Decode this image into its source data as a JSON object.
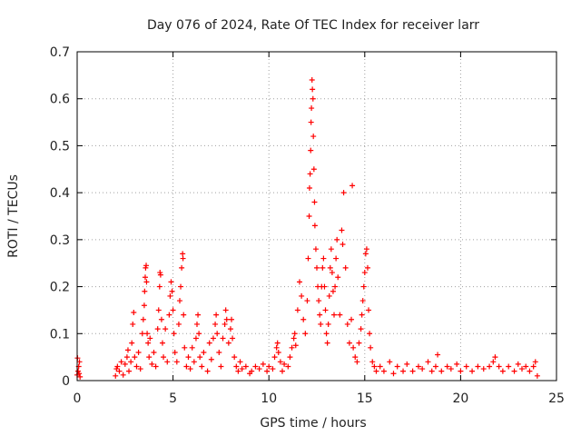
{
  "chart_data": {
    "type": "scatter",
    "title": "Day 076 of 2024, Rate Of TEC Index for receiver larr",
    "xlabel": "GPS time / hours",
    "ylabel": "ROTI / TECUs",
    "xlim": [
      0,
      25
    ],
    "ylim": [
      0,
      0.7
    ],
    "xticks": [
      0,
      5,
      10,
      15,
      20,
      25
    ],
    "yticks": [
      0,
      0.1,
      0.2,
      0.3,
      0.4,
      0.5,
      0.6,
      0.7
    ],
    "xtick_labels": [
      "0",
      "5",
      "10",
      "15",
      "20",
      "25"
    ],
    "ytick_labels": [
      "0",
      "0.1",
      "0.2",
      "0.3",
      "0.4",
      "0.5",
      "0.6",
      "0.7"
    ],
    "grid": true,
    "marker": "+",
    "color": "#ff0000",
    "series": [
      {
        "name": "ROTI",
        "points": [
          [
            0.0,
            0.012
          ],
          [
            0.02,
            0.048
          ],
          [
            0.05,
            0.02
          ],
          [
            0.08,
            0.03
          ],
          [
            0.1,
            0.015
          ],
          [
            0.12,
            0.04
          ],
          [
            0.15,
            0.008
          ],
          [
            2.0,
            0.01
          ],
          [
            2.05,
            0.025
          ],
          [
            2.1,
            0.03
          ],
          [
            2.2,
            0.02
          ],
          [
            2.3,
            0.04
          ],
          [
            2.4,
            0.012
          ],
          [
            2.5,
            0.035
          ],
          [
            2.6,
            0.05
          ],
          [
            2.65,
            0.065
          ],
          [
            2.7,
            0.02
          ],
          [
            2.8,
            0.04
          ],
          [
            2.85,
            0.08
          ],
          [
            2.9,
            0.12
          ],
          [
            2.95,
            0.145
          ],
          [
            3.0,
            0.05
          ],
          [
            3.1,
            0.03
          ],
          [
            3.2,
            0.06
          ],
          [
            3.3,
            0.025
          ],
          [
            3.4,
            0.1
          ],
          [
            3.45,
            0.13
          ],
          [
            3.5,
            0.16
          ],
          [
            3.52,
            0.19
          ],
          [
            3.55,
            0.22
          ],
          [
            3.57,
            0.24
          ],
          [
            3.6,
            0.245
          ],
          [
            3.62,
            0.21
          ],
          [
            3.65,
            0.1
          ],
          [
            3.7,
            0.08
          ],
          [
            3.75,
            0.05
          ],
          [
            3.8,
            0.09
          ],
          [
            3.9,
            0.035
          ],
          [
            4.0,
            0.06
          ],
          [
            4.1,
            0.03
          ],
          [
            4.2,
            0.11
          ],
          [
            4.25,
            0.15
          ],
          [
            4.3,
            0.2
          ],
          [
            4.32,
            0.23
          ],
          [
            4.35,
            0.225
          ],
          [
            4.4,
            0.13
          ],
          [
            4.45,
            0.08
          ],
          [
            4.5,
            0.05
          ],
          [
            4.6,
            0.11
          ],
          [
            4.7,
            0.04
          ],
          [
            4.8,
            0.14
          ],
          [
            4.85,
            0.18
          ],
          [
            4.9,
            0.21
          ],
          [
            4.95,
            0.19
          ],
          [
            5.0,
            0.15
          ],
          [
            5.05,
            0.1
          ],
          [
            5.1,
            0.06
          ],
          [
            5.2,
            0.04
          ],
          [
            5.3,
            0.12
          ],
          [
            5.35,
            0.17
          ],
          [
            5.4,
            0.2
          ],
          [
            5.45,
            0.24
          ],
          [
            5.5,
            0.27
          ],
          [
            5.52,
            0.26
          ],
          [
            5.55,
            0.14
          ],
          [
            5.6,
            0.07
          ],
          [
            5.7,
            0.03
          ],
          [
            5.8,
            0.05
          ],
          [
            5.9,
            0.025
          ],
          [
            6.0,
            0.07
          ],
          [
            6.1,
            0.04
          ],
          [
            6.2,
            0.09
          ],
          [
            6.25,
            0.12
          ],
          [
            6.3,
            0.14
          ],
          [
            6.35,
            0.1
          ],
          [
            6.4,
            0.05
          ],
          [
            6.5,
            0.03
          ],
          [
            6.6,
            0.06
          ],
          [
            6.8,
            0.02
          ],
          [
            6.9,
            0.08
          ],
          [
            7.0,
            0.045
          ],
          [
            7.1,
            0.09
          ],
          [
            7.2,
            0.12
          ],
          [
            7.25,
            0.14
          ],
          [
            7.3,
            0.1
          ],
          [
            7.4,
            0.06
          ],
          [
            7.5,
            0.03
          ],
          [
            7.6,
            0.09
          ],
          [
            7.7,
            0.12
          ],
          [
            7.75,
            0.15
          ],
          [
            7.8,
            0.13
          ],
          [
            7.9,
            0.08
          ],
          [
            8.0,
            0.11
          ],
          [
            8.05,
            0.13
          ],
          [
            8.1,
            0.09
          ],
          [
            8.2,
            0.05
          ],
          [
            8.3,
            0.03
          ],
          [
            8.4,
            0.02
          ],
          [
            8.5,
            0.04
          ],
          [
            8.6,
            0.025
          ],
          [
            8.8,
            0.03
          ],
          [
            9.0,
            0.015
          ],
          [
            9.1,
            0.02
          ],
          [
            9.3,
            0.03
          ],
          [
            9.5,
            0.025
          ],
          [
            9.7,
            0.035
          ],
          [
            9.9,
            0.02
          ],
          [
            10.0,
            0.03
          ],
          [
            10.2,
            0.025
          ],
          [
            10.3,
            0.05
          ],
          [
            10.4,
            0.07
          ],
          [
            10.45,
            0.08
          ],
          [
            10.5,
            0.06
          ],
          [
            10.6,
            0.04
          ],
          [
            10.7,
            0.02
          ],
          [
            10.8,
            0.035
          ],
          [
            11.0,
            0.03
          ],
          [
            11.1,
            0.05
          ],
          [
            11.2,
            0.07
          ],
          [
            11.3,
            0.09
          ],
          [
            11.35,
            0.1
          ],
          [
            11.4,
            0.075
          ],
          [
            11.5,
            0.15
          ],
          [
            11.6,
            0.21
          ],
          [
            11.7,
            0.18
          ],
          [
            11.8,
            0.13
          ],
          [
            11.9,
            0.1
          ],
          [
            12.0,
            0.17
          ],
          [
            12.05,
            0.26
          ],
          [
            12.1,
            0.35
          ],
          [
            12.12,
            0.41
          ],
          [
            12.15,
            0.44
          ],
          [
            12.18,
            0.49
          ],
          [
            12.2,
            0.55
          ],
          [
            12.22,
            0.58
          ],
          [
            12.25,
            0.64
          ],
          [
            12.27,
            0.62
          ],
          [
            12.3,
            0.6
          ],
          [
            12.32,
            0.52
          ],
          [
            12.35,
            0.45
          ],
          [
            12.38,
            0.38
          ],
          [
            12.4,
            0.33
          ],
          [
            12.45,
            0.28
          ],
          [
            12.5,
            0.24
          ],
          [
            12.55,
            0.2
          ],
          [
            12.6,
            0.17
          ],
          [
            12.65,
            0.14
          ],
          [
            12.7,
            0.12
          ],
          [
            12.75,
            0.2
          ],
          [
            12.8,
            0.24
          ],
          [
            12.85,
            0.26
          ],
          [
            12.9,
            0.2
          ],
          [
            12.95,
            0.15
          ],
          [
            13.0,
            0.1
          ],
          [
            13.05,
            0.08
          ],
          [
            13.1,
            0.12
          ],
          [
            13.15,
            0.18
          ],
          [
            13.2,
            0.24
          ],
          [
            13.25,
            0.28
          ],
          [
            13.3,
            0.23
          ],
          [
            13.35,
            0.19
          ],
          [
            13.4,
            0.14
          ],
          [
            13.45,
            0.2
          ],
          [
            13.5,
            0.26
          ],
          [
            13.55,
            0.3
          ],
          [
            13.6,
            0.22
          ],
          [
            13.7,
            0.14
          ],
          [
            13.8,
            0.32
          ],
          [
            13.85,
            0.29
          ],
          [
            13.9,
            0.4
          ],
          [
            14.0,
            0.24
          ],
          [
            14.1,
            0.12
          ],
          [
            14.2,
            0.08
          ],
          [
            14.3,
            0.13
          ],
          [
            14.35,
            0.415
          ],
          [
            14.4,
            0.07
          ],
          [
            14.5,
            0.05
          ],
          [
            14.6,
            0.04
          ],
          [
            14.7,
            0.08
          ],
          [
            14.8,
            0.11
          ],
          [
            14.85,
            0.14
          ],
          [
            14.9,
            0.17
          ],
          [
            14.95,
            0.2
          ],
          [
            15.0,
            0.23
          ],
          [
            15.05,
            0.27
          ],
          [
            15.1,
            0.28
          ],
          [
            15.15,
            0.24
          ],
          [
            15.2,
            0.15
          ],
          [
            15.25,
            0.1
          ],
          [
            15.3,
            0.07
          ],
          [
            15.4,
            0.04
          ],
          [
            15.5,
            0.03
          ],
          [
            15.6,
            0.02
          ],
          [
            15.8,
            0.03
          ],
          [
            16.0,
            0.02
          ],
          [
            16.3,
            0.04
          ],
          [
            16.5,
            0.015
          ],
          [
            16.7,
            0.03
          ],
          [
            17.0,
            0.02
          ],
          [
            17.2,
            0.035
          ],
          [
            17.5,
            0.02
          ],
          [
            17.8,
            0.03
          ],
          [
            18.0,
            0.025
          ],
          [
            18.3,
            0.04
          ],
          [
            18.5,
            0.02
          ],
          [
            18.7,
            0.03
          ],
          [
            18.8,
            0.055
          ],
          [
            19.0,
            0.02
          ],
          [
            19.3,
            0.03
          ],
          [
            19.5,
            0.025
          ],
          [
            19.8,
            0.035
          ],
          [
            20.0,
            0.02
          ],
          [
            20.3,
            0.03
          ],
          [
            20.6,
            0.02
          ],
          [
            20.9,
            0.03
          ],
          [
            21.2,
            0.025
          ],
          [
            21.5,
            0.03
          ],
          [
            21.7,
            0.04
          ],
          [
            21.8,
            0.05
          ],
          [
            22.0,
            0.03
          ],
          [
            22.2,
            0.02
          ],
          [
            22.5,
            0.03
          ],
          [
            22.8,
            0.02
          ],
          [
            23.0,
            0.035
          ],
          [
            23.2,
            0.025
          ],
          [
            23.4,
            0.03
          ],
          [
            23.6,
            0.02
          ],
          [
            23.8,
            0.03
          ],
          [
            23.9,
            0.04
          ],
          [
            24.0,
            0.01
          ]
        ]
      }
    ]
  }
}
